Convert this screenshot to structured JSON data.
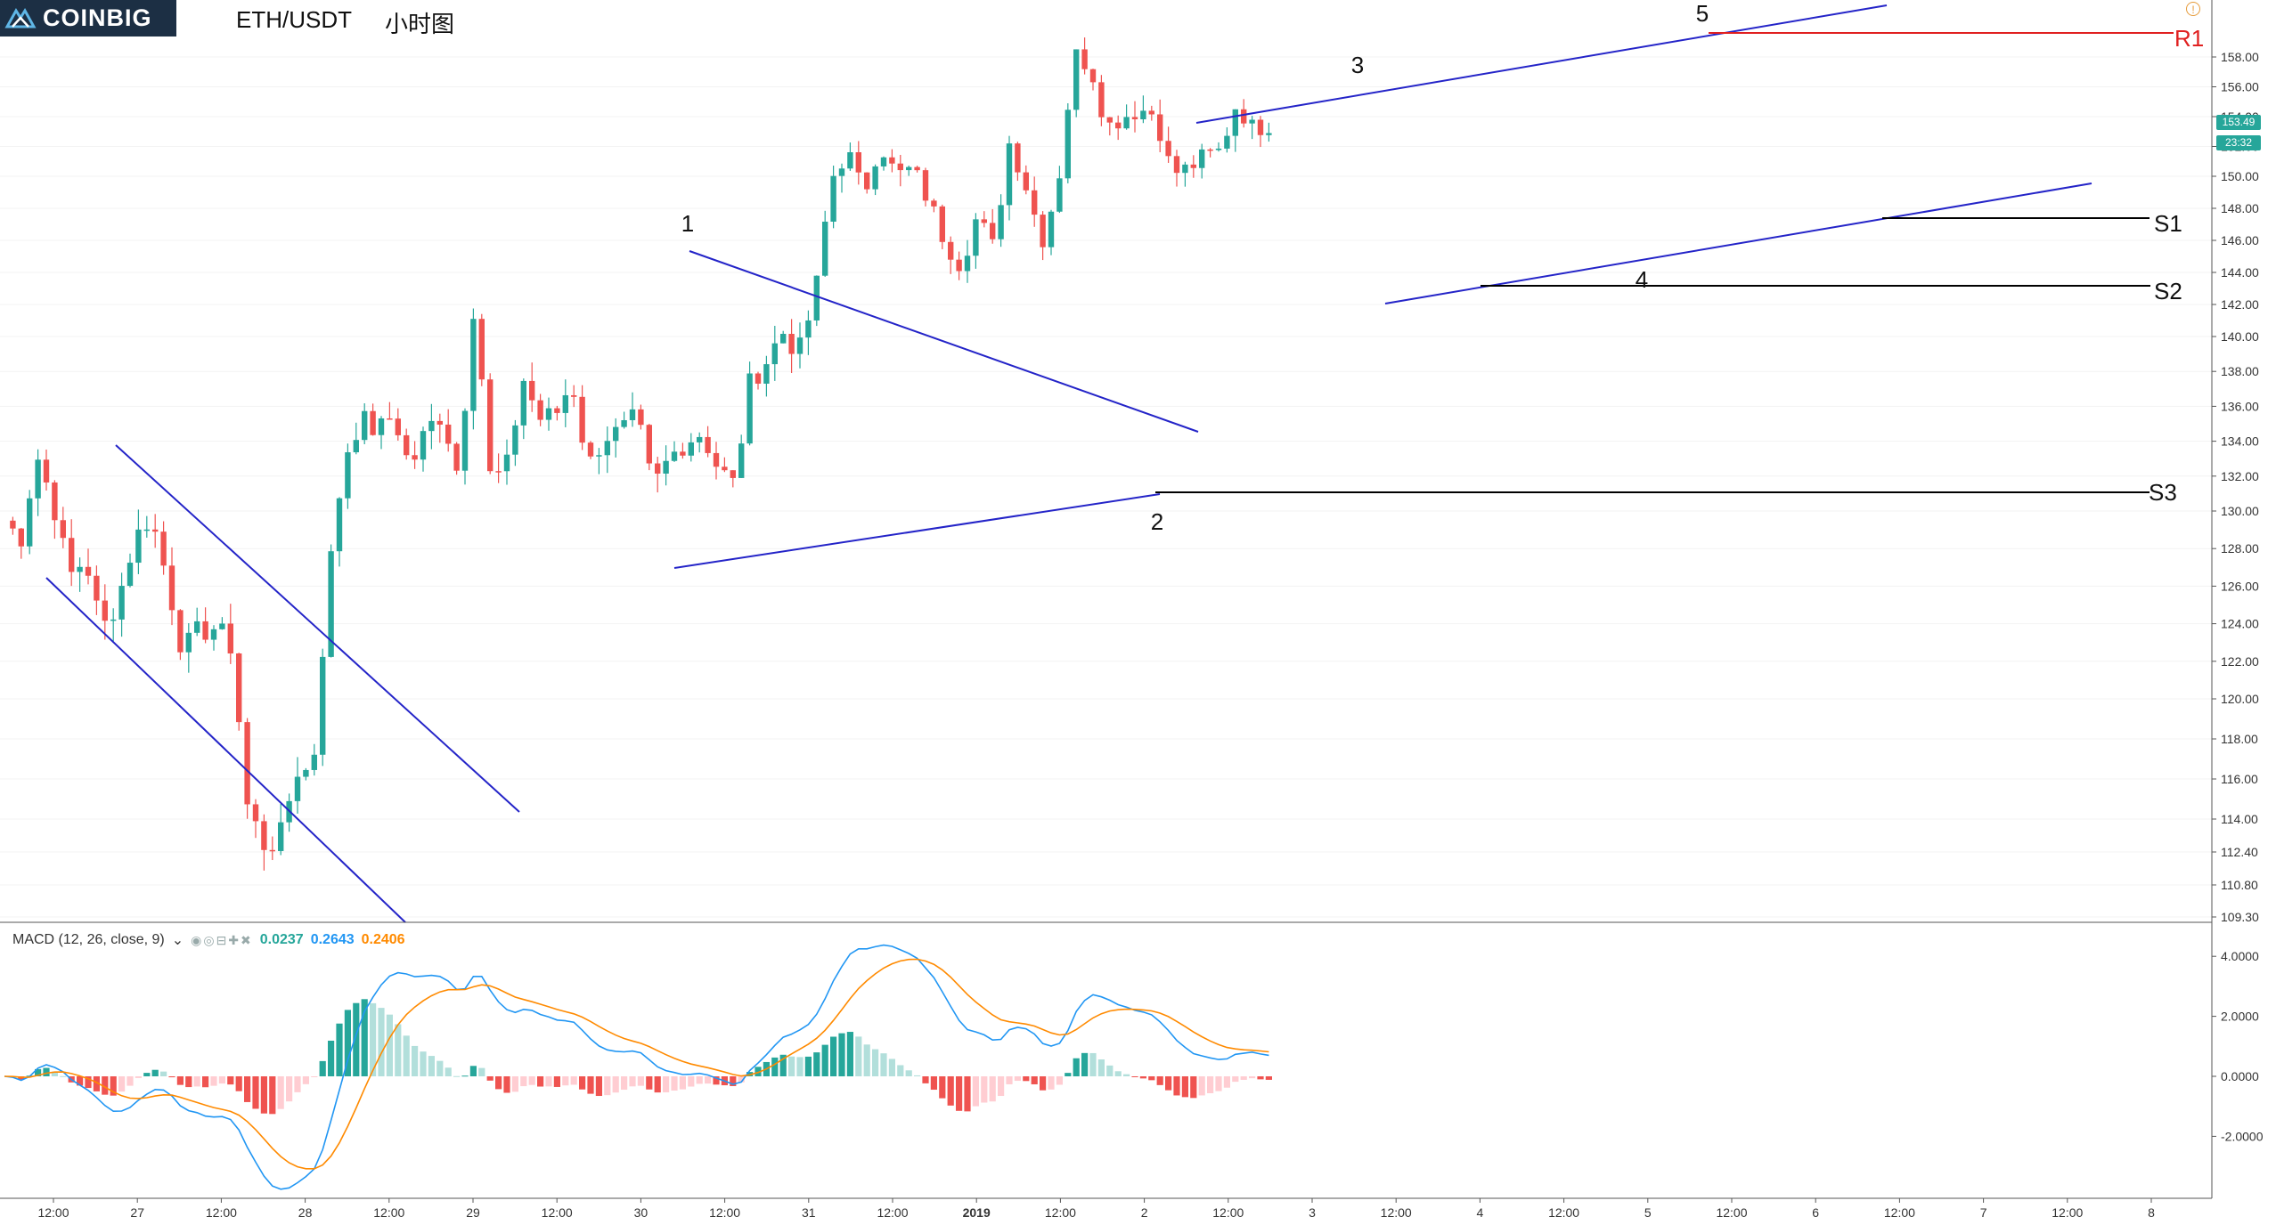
{
  "header": {
    "logo_text": "COINBIG",
    "symbol": "ETH/USDT",
    "period": "小时图"
  },
  "macd": {
    "label": "MACD (12, 26, close, 9)",
    "values": [
      "0.0237",
      "0.2643",
      "0.2406"
    ],
    "y_ticks": [
      "4.0000",
      "2.0000",
      "0.0000",
      "-2.0000"
    ]
  },
  "last_price": {
    "price": "153.49",
    "countdown": "23:32"
  },
  "colors": {
    "up": "#26a69a",
    "down": "#ef5350",
    "channel": "#2424c8",
    "resistance": "#e02020",
    "support": "#000000",
    "macd_line": "#2196f3",
    "signal_line": "#ff8a00"
  },
  "chart_data": {
    "type": "candlestick",
    "timeframe": "1h",
    "price_axis": [
      "158.00",
      "156.00",
      "154.00",
      "152.00",
      "150.00",
      "148.00",
      "146.00",
      "144.00",
      "142.00",
      "140.00",
      "138.00",
      "136.00",
      "134.00",
      "132.00",
      "130.00",
      "128.00",
      "126.00",
      "124.00",
      "122.00",
      "120.00",
      "118.00",
      "116.00",
      "114.00",
      "112.40",
      "110.80",
      "109.30"
    ],
    "time_axis": [
      "12:00",
      "27",
      "12:00",
      "28",
      "12:00",
      "29",
      "12:00",
      "30",
      "12:00",
      "31",
      "12:00",
      "2019",
      "12:00",
      "2",
      "12:00",
      "3",
      "12:00",
      "4",
      "12:00",
      "5",
      "12:00",
      "6",
      "12:00",
      "7",
      "12:00",
      "8"
    ],
    "close_path": [
      [
        0,
        129.5
      ],
      [
        12,
        128.5
      ],
      [
        24,
        133.2
      ],
      [
        36,
        130.5
      ],
      [
        48,
        126.5
      ],
      [
        60,
        127.5
      ],
      [
        72,
        123.6
      ],
      [
        84,
        125.3
      ],
      [
        96,
        128.4
      ],
      [
        108,
        129.8
      ],
      [
        120,
        126.5
      ],
      [
        132,
        122.5
      ],
      [
        144,
        123.6
      ],
      [
        156,
        123.8
      ],
      [
        168,
        122.8
      ],
      [
        180,
        114.5
      ],
      [
        192,
        112.8
      ],
      [
        204,
        113.0
      ],
      [
        216,
        116.5
      ],
      [
        228,
        116.3
      ],
      [
        240,
        126.5
      ],
      [
        252,
        133.2
      ],
      [
        264,
        135.3
      ],
      [
        276,
        134.5
      ],
      [
        288,
        135.6
      ],
      [
        300,
        132.4
      ],
      [
        312,
        134.6
      ],
      [
        324,
        135.6
      ],
      [
        336,
        132.0
      ],
      [
        348,
        142.5
      ],
      [
        360,
        131.6
      ],
      [
        372,
        132.6
      ],
      [
        384,
        137.6
      ],
      [
        396,
        135.3
      ],
      [
        408,
        135.5
      ],
      [
        420,
        137.5
      ],
      [
        432,
        132.5
      ],
      [
        444,
        134.3
      ],
      [
        456,
        134.5
      ],
      [
        468,
        135.4
      ],
      [
        480,
        131.3
      ],
      [
        492,
        133.0
      ],
      [
        504,
        134.0
      ],
      [
        516,
        134.5
      ],
      [
        528,
        132.5
      ],
      [
        540,
        131.5
      ],
      [
        552,
        137.4
      ],
      [
        564,
        138.6
      ],
      [
        576,
        140.3
      ],
      [
        588,
        139.0
      ],
      [
        600,
        142.5
      ],
      [
        612,
        149.8
      ],
      [
        624,
        151.7
      ],
      [
        636,
        148.8
      ],
      [
        648,
        152.3
      ],
      [
        660,
        150.0
      ],
      [
        672,
        150.5
      ],
      [
        684,
        148.5
      ],
      [
        696,
        146.0
      ],
      [
        708,
        144.5
      ],
      [
        720,
        147.5
      ],
      [
        732,
        145.5
      ],
      [
        744,
        152.3
      ],
      [
        756,
        149.5
      ],
      [
        768,
        146.0
      ],
      [
        780,
        149.5
      ],
      [
        792,
        158.2
      ],
      [
        804,
        157.4
      ],
      [
        816,
        153.3
      ],
      [
        828,
        154.0
      ],
      [
        840,
        154.5
      ],
      [
        852,
        154.2
      ],
      [
        864,
        150.2
      ],
      [
        876,
        150.5
      ],
      [
        888,
        151.3
      ],
      [
        900,
        151.7
      ],
      [
        912,
        154.9
      ],
      [
        924,
        153.2
      ],
      [
        936,
        153.5
      ]
    ],
    "annotations": {
      "wave_labels": [
        "1",
        "2",
        "3",
        "4",
        "5"
      ],
      "levels": [
        {
          "label": "R1",
          "price": 158.7
        },
        {
          "label": "S1",
          "price": 147.4
        },
        {
          "label": "S2",
          "price": 143.1
        },
        {
          "label": "S3",
          "price": 130.9
        }
      ]
    }
  }
}
